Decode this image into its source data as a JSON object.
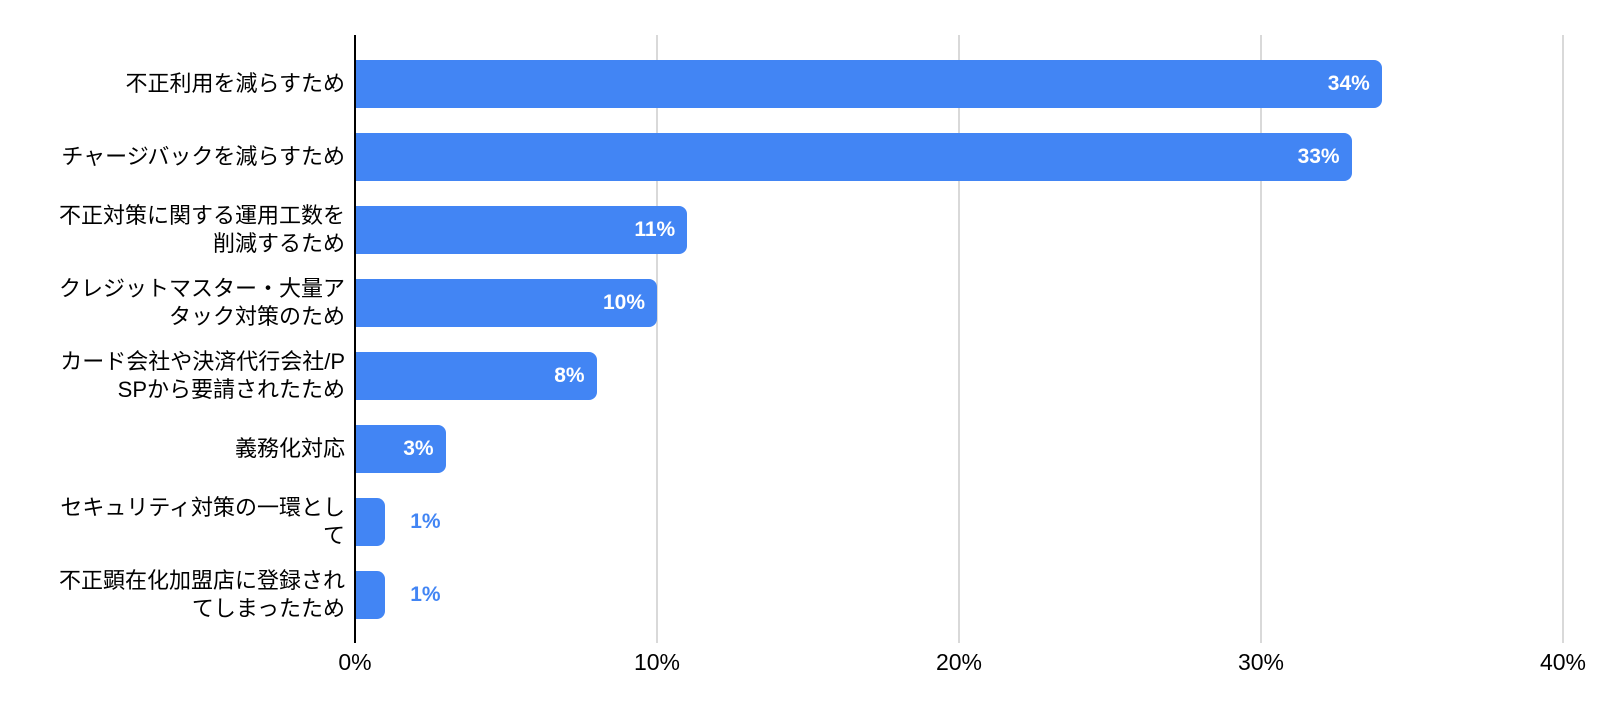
{
  "chart_data": {
    "type": "bar",
    "orientation": "horizontal",
    "title": "",
    "xlabel": "",
    "ylabel": "",
    "xlim": [
      0,
      40
    ],
    "grid": true,
    "legend": "none",
    "categories": [
      "不正利用を減らすため",
      "チャージバックを減らすため",
      "不正対策に関する運用工数を削減するため",
      "クレジットマスター・大量アタック対策のため",
      "カード会社や決済代行会社/PSPから要請されたため",
      "義務化対応",
      "セキュリティ対策の一環として",
      "不正顕在化加盟店に登録されてしまったため"
    ],
    "category_label_lines": [
      [
        "不正利用を減らすため"
      ],
      [
        "チャージバックを減らすため"
      ],
      [
        "不正対策に関する運用工数を",
        "削減するため"
      ],
      [
        "クレジットマスター・大量ア",
        "タック対策のため"
      ],
      [
        "カード会社や決済代行会社/P",
        "SPから要請されたため"
      ],
      [
        "義務化対応"
      ],
      [
        "セキュリティ対策の一環とし",
        "て"
      ],
      [
        "不正顕在化加盟店に登録され",
        "てしまったため"
      ]
    ],
    "values": [
      34,
      33,
      11,
      10,
      8,
      3,
      1,
      1
    ],
    "value_labels": [
      "34%",
      "33%",
      "11%",
      "10%",
      "8%",
      "3%",
      "1%",
      "1%"
    ],
    "value_label_placement": [
      "inside",
      "inside",
      "inside",
      "inside",
      "inside",
      "inside",
      "outside",
      "outside"
    ],
    "x_ticks": [
      {
        "value": 0,
        "label": "0%"
      },
      {
        "value": 10,
        "label": "10%"
      },
      {
        "value": 20,
        "label": "20%"
      },
      {
        "value": 30,
        "label": "30%"
      },
      {
        "value": 40,
        "label": "40%"
      }
    ],
    "colors": {
      "bar": "#4285F4",
      "value_label_inside": "#FFFFFF",
      "value_label_outside": "#4285F4",
      "gridline": "#D9D9D9",
      "axis_line": "#000000",
      "category_text": "#000000",
      "tick_text": "#000000",
      "background": "#FFFFFF"
    }
  }
}
